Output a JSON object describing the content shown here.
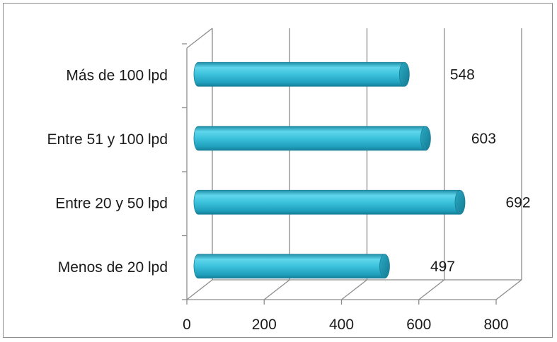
{
  "chart_data": {
    "type": "bar",
    "orientation": "horizontal",
    "style": "3d-cylinder",
    "categories": [
      "Menos de 20 lpd",
      "Entre 20 y 50 lpd",
      "Entre 51 y 100 lpd",
      "Más de 100 lpd"
    ],
    "values": [
      497,
      692,
      603,
      548
    ],
    "data_labels": [
      "497",
      "692",
      "603",
      "548"
    ],
    "xlim": [
      0,
      800
    ],
    "x_ticks": [
      "0",
      "200",
      "400",
      "600",
      "800"
    ],
    "grid": true,
    "legend": "none",
    "title": "",
    "xlabel": "",
    "ylabel": "",
    "bar_color": "#3dbfd9"
  }
}
